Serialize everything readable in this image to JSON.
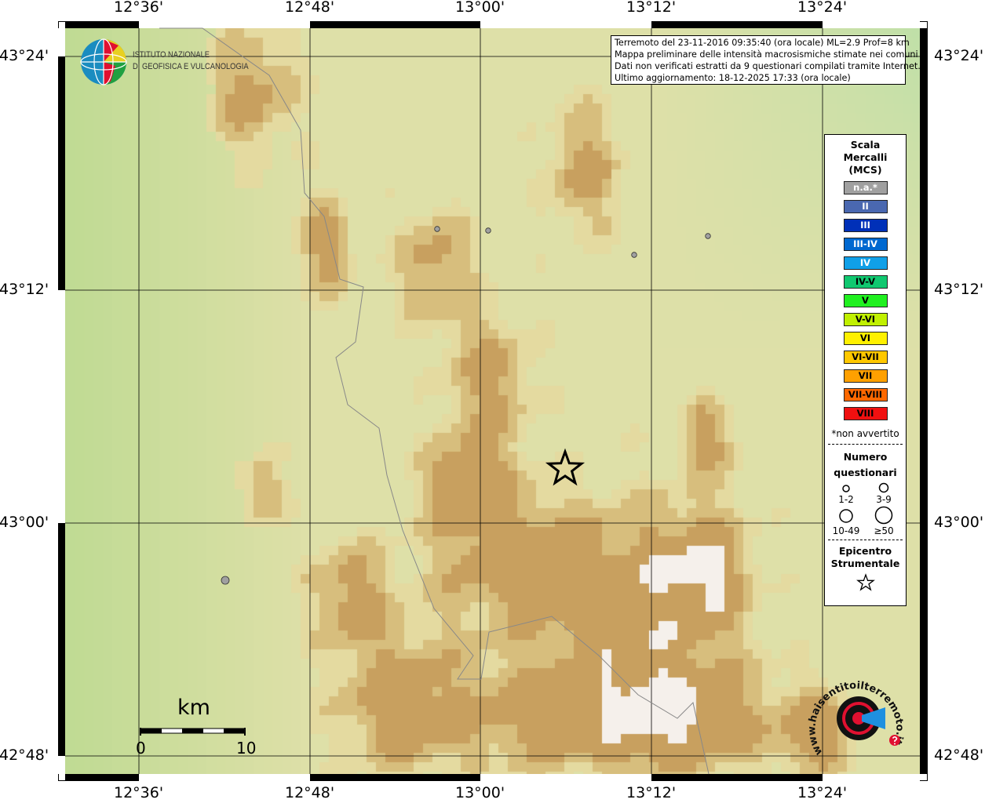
{
  "info_box": {
    "lines": [
      "Terremoto del 23-11-2016 09:35:40 (ora locale) ML=2.9 Prof=8 km",
      "Mappa preliminare delle intensità macrosismiche stimate nei comuni",
      "Dati non verificati estratti da 9 questionari compilati tramite Internet.",
      "Ultimo aggiornamento: 18-12-2025 17:33 (ora locale)"
    ]
  },
  "longitude_ticks": [
    "12°36'",
    "12°48'",
    "13°00'",
    "13°12'",
    "13°24'"
  ],
  "latitude_ticks": [
    "43°24'",
    "43°12'",
    "43°00'",
    "42°48'"
  ],
  "logo_ingv": {
    "line1": "ISTITUTO NAZIONALE",
    "line2": "DI GEOFISICA E VULCANOLOGIA"
  },
  "logo_hsit": {
    "text": "www.haisentitoilterremoto.it"
  },
  "scale_bar": {
    "unit": "km",
    "min": "0",
    "max": "10"
  },
  "legend": {
    "title": [
      "Scala",
      "Mercalli",
      "(MCS)"
    ],
    "classes": [
      {
        "label": "n.a.*",
        "color": "#a0a0a0",
        "text": "#ffffff"
      },
      {
        "label": "II",
        "color": "#4a68b0",
        "text": "#ffffff"
      },
      {
        "label": "III",
        "color": "#0030b8",
        "text": "#ffffff"
      },
      {
        "label": "III-IV",
        "color": "#0068d0",
        "text": "#ffffff"
      },
      {
        "label": "IV",
        "color": "#10a0e8",
        "text": "#ffffff"
      },
      {
        "label": "IV-V",
        "color": "#10c870",
        "text": "#000000"
      },
      {
        "label": "V",
        "color": "#20f020",
        "text": "#000000"
      },
      {
        "label": "V-VI",
        "color": "#c0f000",
        "text": "#000000"
      },
      {
        "label": "VI",
        "color": "#fff000",
        "text": "#000000"
      },
      {
        "label": "VI-VII",
        "color": "#ffc800",
        "text": "#000000"
      },
      {
        "label": "VII",
        "color": "#ffa000",
        "text": "#000000"
      },
      {
        "label": "VII-VIII",
        "color": "#ff6800",
        "text": "#000000"
      },
      {
        "label": "VIII",
        "color": "#f01010",
        "text": "#000000"
      }
    ],
    "note": "*non avvertito",
    "count_title": [
      "Numero",
      "questionari"
    ],
    "count_classes": [
      "1-2",
      "3-9",
      "10-49",
      "≥50"
    ],
    "epicenter_title": [
      "Epicentro",
      "Strumentale"
    ]
  },
  "markers": {
    "questionnaire_color": "#a0a0a0",
    "epicenter_icon": "star-icon"
  }
}
